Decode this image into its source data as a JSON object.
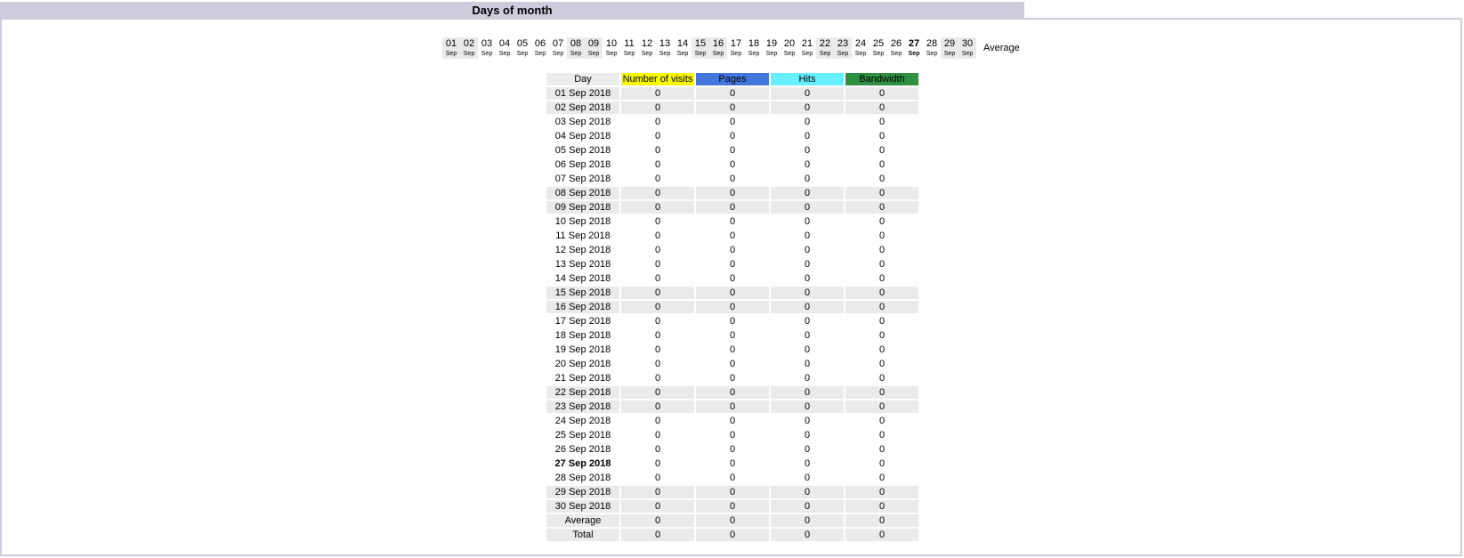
{
  "section_title": "Days of month",
  "colors": {
    "visits": "#f8f800",
    "pages": "#4477dd",
    "hits": "#66f0ff",
    "bandwidth": "#2e9040",
    "weekend": "#eaeaea",
    "header_bar": "#ccccdd"
  },
  "strip": {
    "days": [
      "01",
      "02",
      "03",
      "04",
      "05",
      "06",
      "07",
      "08",
      "09",
      "10",
      "11",
      "12",
      "13",
      "14",
      "15",
      "16",
      "17",
      "18",
      "19",
      "20",
      "21",
      "22",
      "23",
      "24",
      "25",
      "26",
      "27",
      "28",
      "29",
      "30"
    ],
    "month": "Sep",
    "weekend": [
      "01",
      "02",
      "08",
      "09",
      "15",
      "16",
      "22",
      "23",
      "29",
      "30"
    ],
    "today": "27",
    "average_label": "Average"
  },
  "table": {
    "headers": [
      "Day",
      "Number of visits",
      "Pages",
      "Hits",
      "Bandwidth"
    ],
    "rows": [
      [
        "01 Sep 2018",
        "0",
        "0",
        "0",
        "0"
      ],
      [
        "02 Sep 2018",
        "0",
        "0",
        "0",
        "0"
      ],
      [
        "03 Sep 2018",
        "0",
        "0",
        "0",
        "0"
      ],
      [
        "04 Sep 2018",
        "0",
        "0",
        "0",
        "0"
      ],
      [
        "05 Sep 2018",
        "0",
        "0",
        "0",
        "0"
      ],
      [
        "06 Sep 2018",
        "0",
        "0",
        "0",
        "0"
      ],
      [
        "07 Sep 2018",
        "0",
        "0",
        "0",
        "0"
      ],
      [
        "08 Sep 2018",
        "0",
        "0",
        "0",
        "0"
      ],
      [
        "09 Sep 2018",
        "0",
        "0",
        "0",
        "0"
      ],
      [
        "10 Sep 2018",
        "0",
        "0",
        "0",
        "0"
      ],
      [
        "11 Sep 2018",
        "0",
        "0",
        "0",
        "0"
      ],
      [
        "12 Sep 2018",
        "0",
        "0",
        "0",
        "0"
      ],
      [
        "13 Sep 2018",
        "0",
        "0",
        "0",
        "0"
      ],
      [
        "14 Sep 2018",
        "0",
        "0",
        "0",
        "0"
      ],
      [
        "15 Sep 2018",
        "0",
        "0",
        "0",
        "0"
      ],
      [
        "16 Sep 2018",
        "0",
        "0",
        "0",
        "0"
      ],
      [
        "17 Sep 2018",
        "0",
        "0",
        "0",
        "0"
      ],
      [
        "18 Sep 2018",
        "0",
        "0",
        "0",
        "0"
      ],
      [
        "19 Sep 2018",
        "0",
        "0",
        "0",
        "0"
      ],
      [
        "20 Sep 2018",
        "0",
        "0",
        "0",
        "0"
      ],
      [
        "21 Sep 2018",
        "0",
        "0",
        "0",
        "0"
      ],
      [
        "22 Sep 2018",
        "0",
        "0",
        "0",
        "0"
      ],
      [
        "23 Sep 2018",
        "0",
        "0",
        "0",
        "0"
      ],
      [
        "24 Sep 2018",
        "0",
        "0",
        "0",
        "0"
      ],
      [
        "25 Sep 2018",
        "0",
        "0",
        "0",
        "0"
      ],
      [
        "26 Sep 2018",
        "0",
        "0",
        "0",
        "0"
      ],
      [
        "27 Sep 2018",
        "0",
        "0",
        "0",
        "0"
      ],
      [
        "28 Sep 2018",
        "0",
        "0",
        "0",
        "0"
      ],
      [
        "29 Sep 2018",
        "0",
        "0",
        "0",
        "0"
      ],
      [
        "30 Sep 2018",
        "0",
        "0",
        "0",
        "0"
      ]
    ],
    "average": [
      "Average",
      "0",
      "0",
      "0",
      "0"
    ],
    "total": [
      "Total",
      "0",
      "0",
      "0",
      "0"
    ]
  }
}
